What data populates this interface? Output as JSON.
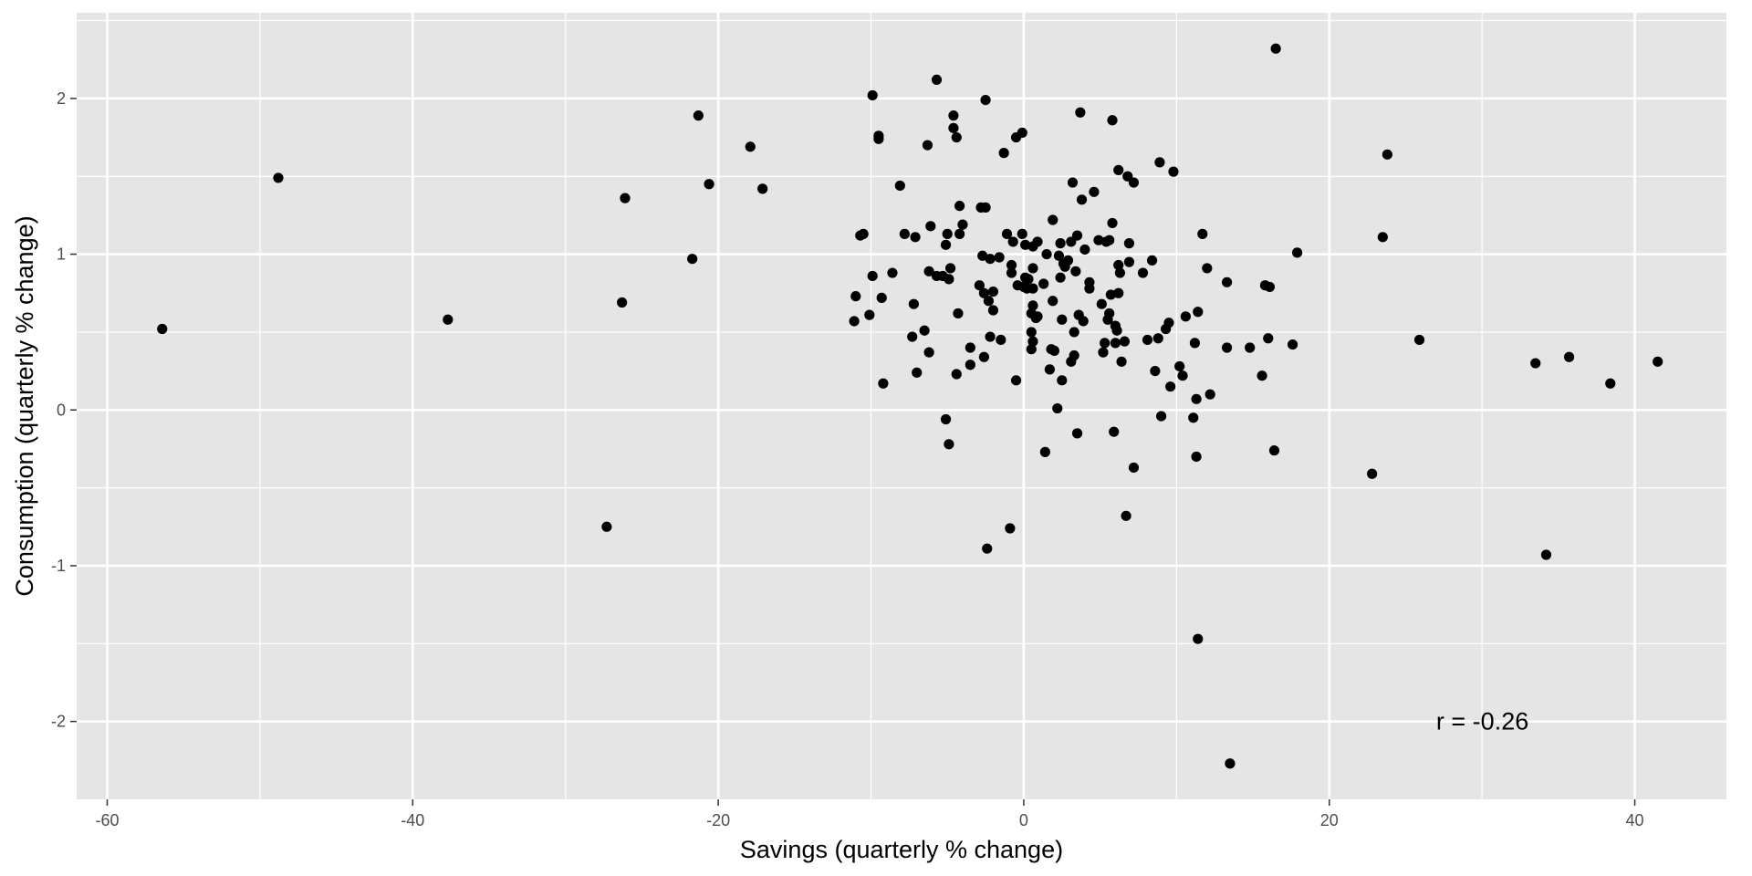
{
  "chart_data": {
    "type": "scatter",
    "title": "",
    "xlabel": "Savings (quarterly % change)",
    "ylabel": "Consumption (quarterly % change)",
    "xlim": [
      -62,
      46
    ],
    "ylim": [
      -2.5,
      2.55
    ],
    "xticks": [
      -60,
      -40,
      -20,
      0,
      20,
      40
    ],
    "yticks": [
      -2,
      -1,
      0,
      1,
      2
    ],
    "grid": true,
    "legend": "none",
    "annotation": {
      "text": "r = -0.26",
      "x": 27,
      "y": -2.0
    },
    "colors": {
      "panel": "#e5e5e5",
      "grid_major": "#ffffff",
      "point": "#000000",
      "tick_text": "#4d4d4d"
    },
    "points": [
      [
        -56.4,
        0.52
      ],
      [
        -48.8,
        1.49
      ],
      [
        -37.7,
        0.58
      ],
      [
        -27.3,
        -0.75
      ],
      [
        -26.3,
        0.69
      ],
      [
        -26.1,
        1.36
      ],
      [
        -21.7,
        0.97
      ],
      [
        -21.3,
        1.89
      ],
      [
        -20.6,
        1.45
      ],
      [
        -17.9,
        1.69
      ],
      [
        -17.1,
        1.42
      ],
      [
        -11.1,
        0.57
      ],
      [
        -11.0,
        0.73
      ],
      [
        -10.7,
        1.12
      ],
      [
        -10.5,
        1.13
      ],
      [
        -10.1,
        0.61
      ],
      [
        -9.9,
        0.86
      ],
      [
        -9.9,
        2.02
      ],
      [
        -9.5,
        1.76
      ],
      [
        -9.5,
        1.74
      ],
      [
        -9.3,
        0.72
      ],
      [
        -9.2,
        0.17
      ],
      [
        -8.6,
        0.88
      ],
      [
        -8.1,
        1.44
      ],
      [
        -7.8,
        1.13
      ],
      [
        -7.3,
        0.47
      ],
      [
        -7.2,
        0.68
      ],
      [
        -7.1,
        1.11
      ],
      [
        -7.0,
        0.24
      ],
      [
        -6.5,
        0.51
      ],
      [
        -6.3,
        1.7
      ],
      [
        -6.2,
        0.89
      ],
      [
        -6.2,
        0.37
      ],
      [
        -6.1,
        1.18
      ],
      [
        -5.7,
        0.86
      ],
      [
        -5.7,
        2.12
      ],
      [
        -5.3,
        0.86
      ],
      [
        -5.1,
        -0.06
      ],
      [
        -5.1,
        1.06
      ],
      [
        -5.0,
        1.13
      ],
      [
        -4.9,
        0.84
      ],
      [
        -4.9,
        -0.22
      ],
      [
        -4.8,
        0.91
      ],
      [
        -4.6,
        1.81
      ],
      [
        -4.6,
        1.89
      ],
      [
        -4.4,
        1.75
      ],
      [
        -4.4,
        0.23
      ],
      [
        -4.3,
        0.62
      ],
      [
        -4.2,
        1.31
      ],
      [
        -4.2,
        1.13
      ],
      [
        -4.0,
        1.19
      ],
      [
        -3.5,
        0.29
      ],
      [
        -3.5,
        0.4
      ],
      [
        -2.9,
        0.8
      ],
      [
        -2.8,
        1.3
      ],
      [
        -2.7,
        0.99
      ],
      [
        -2.6,
        0.34
      ],
      [
        -2.6,
        0.75
      ],
      [
        -2.5,
        1.99
      ],
      [
        -2.5,
        1.3
      ],
      [
        -2.4,
        -0.89
      ],
      [
        -2.3,
        0.7
      ],
      [
        -2.2,
        0.47
      ],
      [
        -2.2,
        0.97
      ],
      [
        -2.0,
        0.76
      ],
      [
        -2.0,
        0.64
      ],
      [
        -1.6,
        0.98
      ],
      [
        -1.5,
        0.45
      ],
      [
        -1.3,
        1.65
      ],
      [
        -1.1,
        1.13
      ],
      [
        -0.8,
        0.93
      ],
      [
        -0.8,
        0.88
      ],
      [
        -0.7,
        1.08
      ],
      [
        -0.9,
        -0.76
      ],
      [
        -0.5,
        0.19
      ],
      [
        -0.5,
        1.75
      ],
      [
        -0.4,
        0.8
      ],
      [
        -0.1,
        1.13
      ],
      [
        -0.1,
        1.78
      ],
      [
        0.0,
        0.79
      ],
      [
        0.1,
        0.85
      ],
      [
        0.1,
        1.06
      ],
      [
        0.2,
        0.78
      ],
      [
        0.3,
        0.84
      ],
      [
        0.5,
        0.62
      ],
      [
        0.5,
        0.5
      ],
      [
        0.5,
        0.39
      ],
      [
        0.6,
        0.91
      ],
      [
        0.6,
        0.78
      ],
      [
        0.6,
        0.67
      ],
      [
        0.6,
        0.44
      ],
      [
        0.6,
        1.05
      ],
      [
        0.8,
        0.59
      ],
      [
        0.9,
        0.6
      ],
      [
        0.9,
        1.08
      ],
      [
        1.3,
        0.81
      ],
      [
        1.4,
        -0.27
      ],
      [
        1.5,
        1.0
      ],
      [
        1.7,
        0.26
      ],
      [
        1.8,
        0.39
      ],
      [
        1.9,
        1.22
      ],
      [
        1.9,
        0.7
      ],
      [
        2.0,
        0.38
      ],
      [
        2.2,
        0.01
      ],
      [
        2.3,
        0.99
      ],
      [
        2.4,
        0.85
      ],
      [
        2.4,
        1.07
      ],
      [
        2.5,
        0.19
      ],
      [
        2.5,
        0.58
      ],
      [
        2.6,
        0.94
      ],
      [
        2.7,
        0.92
      ],
      [
        2.9,
        0.96
      ],
      [
        3.1,
        0.31
      ],
      [
        3.1,
        1.08
      ],
      [
        3.2,
        1.46
      ],
      [
        3.3,
        0.35
      ],
      [
        3.3,
        0.5
      ],
      [
        3.4,
        0.89
      ],
      [
        3.5,
        -0.15
      ],
      [
        3.5,
        1.12
      ],
      [
        3.6,
        0.61
      ],
      [
        3.7,
        1.91
      ],
      [
        3.8,
        1.35
      ],
      [
        3.9,
        0.57
      ],
      [
        4.0,
        1.03
      ],
      [
        4.3,
        0.78
      ],
      [
        4.3,
        0.82
      ],
      [
        4.6,
        1.4
      ],
      [
        4.9,
        1.09
      ],
      [
        5.1,
        0.68
      ],
      [
        5.2,
        0.37
      ],
      [
        5.3,
        0.43
      ],
      [
        5.4,
        1.08
      ],
      [
        5.5,
        0.58
      ],
      [
        5.6,
        0.62
      ],
      [
        5.6,
        1.09
      ],
      [
        5.7,
        0.74
      ],
      [
        5.8,
        1.86
      ],
      [
        5.8,
        1.2
      ],
      [
        5.9,
        -0.14
      ],
      [
        6.0,
        0.54
      ],
      [
        6.0,
        0.43
      ],
      [
        6.1,
        0.51
      ],
      [
        6.2,
        0.93
      ],
      [
        6.2,
        1.54
      ],
      [
        6.2,
        0.75
      ],
      [
        6.3,
        0.88
      ],
      [
        6.4,
        0.31
      ],
      [
        6.6,
        0.44
      ],
      [
        6.7,
        -0.68
      ],
      [
        6.8,
        1.5
      ],
      [
        6.9,
        0.95
      ],
      [
        6.9,
        1.07
      ],
      [
        7.2,
        1.46
      ],
      [
        7.2,
        -0.37
      ],
      [
        7.8,
        0.88
      ],
      [
        8.1,
        0.45
      ],
      [
        8.4,
        0.96
      ],
      [
        8.6,
        0.25
      ],
      [
        8.8,
        0.46
      ],
      [
        8.9,
        1.59
      ],
      [
        9.0,
        -0.04
      ],
      [
        9.3,
        0.52
      ],
      [
        9.5,
        0.56
      ],
      [
        9.6,
        0.15
      ],
      [
        9.8,
        1.53
      ],
      [
        10.2,
        0.28
      ],
      [
        10.4,
        0.22
      ],
      [
        10.6,
        0.6
      ],
      [
        11.1,
        -0.05
      ],
      [
        11.2,
        0.43
      ],
      [
        11.3,
        0.07
      ],
      [
        11.3,
        -0.3
      ],
      [
        11.4,
        0.63
      ],
      [
        11.4,
        -1.47
      ],
      [
        11.7,
        1.13
      ],
      [
        12.0,
        0.91
      ],
      [
        12.2,
        0.1
      ],
      [
        13.3,
        0.82
      ],
      [
        13.3,
        0.4
      ],
      [
        13.5,
        -2.27
      ],
      [
        14.8,
        0.4
      ],
      [
        15.6,
        0.22
      ],
      [
        15.8,
        0.8
      ],
      [
        16.0,
        0.46
      ],
      [
        16.1,
        0.79
      ],
      [
        16.5,
        2.32
      ],
      [
        16.4,
        -0.26
      ],
      [
        17.6,
        0.42
      ],
      [
        17.9,
        1.01
      ],
      [
        22.8,
        -0.41
      ],
      [
        23.5,
        1.11
      ],
      [
        23.8,
        1.64
      ],
      [
        25.9,
        0.45
      ],
      [
        33.5,
        0.3
      ],
      [
        34.2,
        -0.93
      ],
      [
        35.7,
        0.34
      ],
      [
        38.4,
        0.17
      ],
      [
        41.5,
        0.31
      ]
    ]
  }
}
